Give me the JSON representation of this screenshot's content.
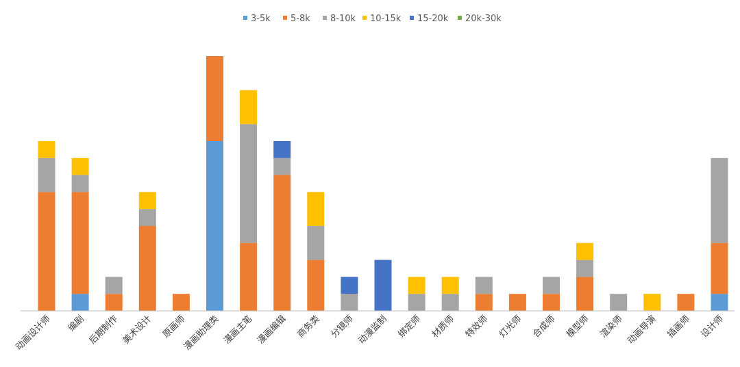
{
  "chart_data": {
    "type": "bar",
    "stacked": true,
    "title": "",
    "xlabel": "",
    "ylabel": "",
    "ylim": [
      0,
      15
    ],
    "grid": false,
    "legend_position": "top",
    "categories": [
      "动画设计师",
      "编剧",
      "后期制作",
      "美术设计",
      "原画师",
      "漫画助理类",
      "漫画主笔",
      "漫画编辑",
      "商务类",
      "分镜师",
      "动漫监制",
      "绑定师",
      "材质师",
      "特效师",
      "灯光师",
      "合成师",
      "模型师",
      "渲染师",
      "动画导演",
      "插画师",
      "设计师"
    ],
    "series": [
      {
        "name": "3-5k",
        "color": "#5B9BD5",
        "values": [
          0,
          1,
          0,
          0,
          0,
          10,
          0,
          0,
          0,
          0,
          0,
          0,
          0,
          0,
          0,
          0,
          0,
          0,
          0,
          0,
          1
        ]
      },
      {
        "name": "5-8k",
        "color": "#ED7D31",
        "values": [
          7,
          6,
          1,
          5,
          1,
          5,
          4,
          8,
          3,
          0,
          0,
          0,
          0,
          1,
          1,
          1,
          2,
          0,
          0,
          1,
          3
        ]
      },
      {
        "name": "8-10k",
        "color": "#A5A5A5",
        "values": [
          2,
          1,
          1,
          1,
          0,
          0,
          7,
          1,
          2,
          1,
          0,
          1,
          1,
          1,
          0,
          1,
          1,
          1,
          0,
          0,
          5
        ]
      },
      {
        "name": "10-15k",
        "color": "#FFC000",
        "values": [
          1,
          1,
          0,
          1,
          0,
          0,
          2,
          0,
          2,
          0,
          0,
          1,
          1,
          0,
          0,
          0,
          1,
          0,
          1,
          0,
          0
        ]
      },
      {
        "name": "15-20k",
        "color": "#4472C4",
        "values": [
          0,
          0,
          0,
          0,
          0,
          0,
          0,
          1,
          0,
          1,
          3,
          0,
          0,
          0,
          0,
          0,
          0,
          0,
          0,
          0,
          0
        ]
      },
      {
        "name": "20k-30k",
        "color": "#70AD47",
        "values": [
          0,
          0,
          0,
          0,
          0,
          0,
          0,
          0,
          0,
          0,
          0,
          0,
          0,
          0,
          0,
          0,
          0,
          0,
          0,
          0,
          0
        ]
      }
    ]
  }
}
